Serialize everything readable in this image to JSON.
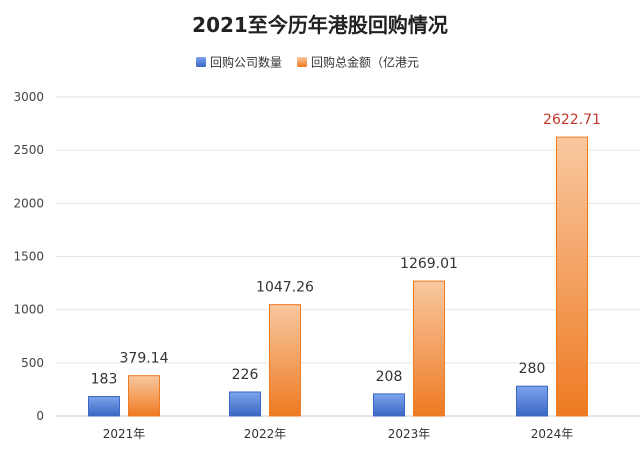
{
  "chart_data": {
    "type": "bar",
    "title": "2021至今历年港股回购情况",
    "categories": [
      "2021年",
      "2022年",
      "2023年",
      "2024年"
    ],
    "series": [
      {
        "name": "回购公司数量",
        "values": [
          183,
          226,
          208,
          280
        ],
        "labels": [
          "183",
          "226",
          "208",
          "280"
        ],
        "color": "#4a78d0"
      },
      {
        "name": "回购总金额（亿港元",
        "values": [
          379.14,
          1047.26,
          1269.01,
          2622.71
        ],
        "labels": [
          "379.14",
          "1047.26",
          "1269.01",
          "2622.71"
        ],
        "color": "#f08a3a"
      }
    ],
    "yticks": [
      "0",
      "500",
      "1000",
      "1500",
      "2000",
      "2500",
      "3000"
    ],
    "ylim": [
      0,
      3000
    ],
    "grid": true,
    "legend_position": "top-center",
    "highlight_label_color": "#c0392b"
  }
}
